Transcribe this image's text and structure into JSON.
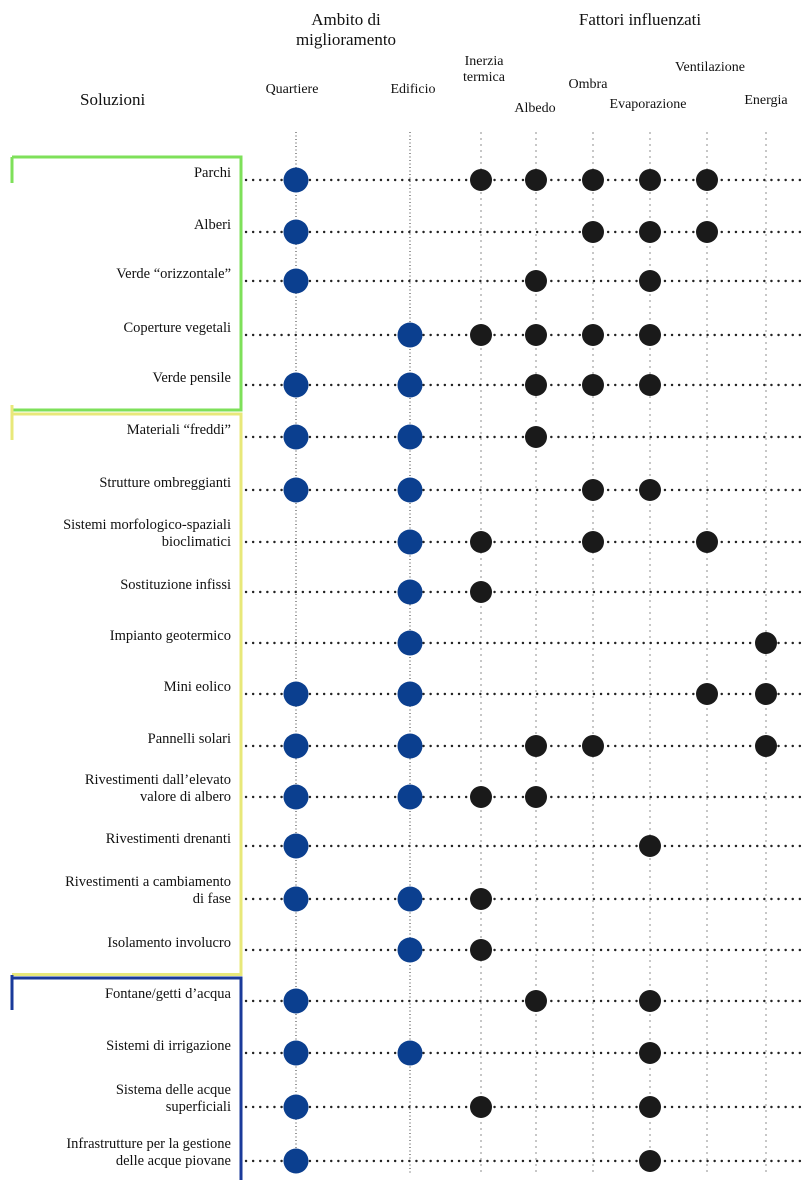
{
  "header": {
    "solutions_title": "Soluzioni",
    "scope_title_line1": "Ambito di",
    "scope_title_line2": "miglioramento",
    "factors_title": "Fattori influenzati"
  },
  "columns": [
    {
      "id": "quartiere",
      "group": "scope",
      "label_lines": [
        "Quartiere"
      ]
    },
    {
      "id": "edificio",
      "group": "scope",
      "label_lines": [
        "Edificio"
      ]
    },
    {
      "id": "inerzia",
      "group": "factor",
      "label_lines": [
        "Inerzia",
        "termica"
      ]
    },
    {
      "id": "albedo",
      "group": "factor",
      "label_lines": [
        "Albedo"
      ]
    },
    {
      "id": "ombra",
      "group": "factor",
      "label_lines": [
        "Ombra"
      ]
    },
    {
      "id": "evaporazione",
      "group": "factor",
      "label_lines": [
        "Evaporazione"
      ]
    },
    {
      "id": "ventilazione",
      "group": "factor",
      "label_lines": [
        "Ventilazione"
      ]
    },
    {
      "id": "energia",
      "group": "factor",
      "label_lines": [
        "Energia"
      ]
    }
  ],
  "groups": [
    {
      "id": "verde",
      "color": "#7ee05a",
      "rows": [
        0,
        4
      ]
    },
    {
      "id": "materiali",
      "color": "#e8e87a",
      "rows": [
        5,
        15
      ]
    },
    {
      "id": "acqua",
      "color": "#1a3a9a",
      "rows": [
        16,
        19
      ]
    }
  ],
  "colors": {
    "scope_dot": "#0b3f8f",
    "factor_dot": "#1a1a1a",
    "dotted_line": "#222222",
    "guide_line": "#999999"
  },
  "rows": [
    {
      "label_lines": [
        "Parchi"
      ],
      "dots": [
        "quartiere",
        "inerzia",
        "albedo",
        "ombra",
        "evaporazione",
        "ventilazione"
      ]
    },
    {
      "label_lines": [
        "Alberi"
      ],
      "dots": [
        "quartiere",
        "ombra",
        "evaporazione",
        "ventilazione"
      ]
    },
    {
      "label_lines": [
        "Verde “orizzontale”"
      ],
      "dots": [
        "quartiere",
        "albedo",
        "evaporazione"
      ]
    },
    {
      "label_lines": [
        "Coperture vegetali"
      ],
      "dots": [
        "edificio",
        "inerzia",
        "albedo",
        "ombra",
        "evaporazione"
      ]
    },
    {
      "label_lines": [
        "Verde pensile"
      ],
      "dots": [
        "quartiere",
        "edificio",
        "albedo",
        "ombra",
        "evaporazione"
      ]
    },
    {
      "label_lines": [
        "Materiali “freddi”"
      ],
      "dots": [
        "quartiere",
        "edificio",
        "albedo"
      ]
    },
    {
      "label_lines": [
        "Strutture ombreggianti"
      ],
      "dots": [
        "quartiere",
        "edificio",
        "ombra",
        "evaporazione"
      ]
    },
    {
      "label_lines": [
        "Sistemi morfologico-spaziali",
        "bioclimatici"
      ],
      "dots": [
        "edificio",
        "inerzia",
        "ombra",
        "ventilazione"
      ]
    },
    {
      "label_lines": [
        "Sostituzione infissi"
      ],
      "dots": [
        "edificio",
        "inerzia"
      ]
    },
    {
      "label_lines": [
        "Impianto geotermico"
      ],
      "dots": [
        "edificio",
        "energia"
      ]
    },
    {
      "label_lines": [
        "Mini eolico"
      ],
      "dots": [
        "quartiere",
        "edificio",
        "ventilazione",
        "energia"
      ]
    },
    {
      "label_lines": [
        "Pannelli solari"
      ],
      "dots": [
        "quartiere",
        "edificio",
        "albedo",
        "ombra",
        "energia"
      ]
    },
    {
      "label_lines": [
        "Rivestimenti dall’elevato",
        "valore di albero"
      ],
      "dots": [
        "quartiere",
        "edificio",
        "inerzia",
        "albedo"
      ]
    },
    {
      "label_lines": [
        "Rivestimenti drenanti"
      ],
      "dots": [
        "quartiere",
        "evaporazione"
      ]
    },
    {
      "label_lines": [
        "Rivestimenti a cambiamento",
        "di fase"
      ],
      "dots": [
        "quartiere",
        "edificio",
        "inerzia"
      ]
    },
    {
      "label_lines": [
        "Isolamento involucro"
      ],
      "dots": [
        "edificio",
        "inerzia"
      ]
    },
    {
      "label_lines": [
        "Fontane/getti d’acqua"
      ],
      "dots": [
        "quartiere",
        "albedo",
        "evaporazione"
      ]
    },
    {
      "label_lines": [
        "Sistemi di irrigazione"
      ],
      "dots": [
        "quartiere",
        "edificio",
        "evaporazione"
      ]
    },
    {
      "label_lines": [
        "Sistema delle acque",
        "superficiali"
      ],
      "dots": [
        "quartiere",
        "inerzia",
        "evaporazione"
      ]
    },
    {
      "label_lines": [
        "Infrastrutture per la gestione",
        "delle acque piovane"
      ],
      "dots": [
        "quartiere",
        "evaporazione"
      ]
    }
  ]
}
